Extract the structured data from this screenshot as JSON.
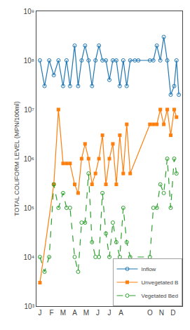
{
  "chart_data": {
    "type": "line",
    "ylabel": "TOTAL COLIFORM LEVEL (MPN/100ml)",
    "log": "y",
    "grid": false,
    "legend": "lower right",
    "xlim": [
      -0.3,
      12.3
    ],
    "xticks": [
      {
        "value": 0,
        "label": "J"
      },
      {
        "value": 1,
        "label": "F"
      },
      {
        "value": 2,
        "label": "M"
      },
      {
        "value": 3,
        "label": "A"
      },
      {
        "value": 4,
        "label": "M"
      },
      {
        "value": 5,
        "label": "J"
      },
      {
        "value": 6,
        "label": "J"
      },
      {
        "value": 7,
        "label": "A"
      },
      {
        "value": 9.5,
        "label": "O"
      },
      {
        "value": 10.5,
        "label": "N"
      },
      {
        "value": 11.5,
        "label": "D"
      }
    ],
    "ylim": [
      1000,
      1000000000
    ],
    "yticks": [
      {
        "value": 1000,
        "label": "10³"
      },
      {
        "value": 10000,
        "label": "10⁴"
      },
      {
        "value": 100000,
        "label": "10⁵"
      },
      {
        "value": 1000000,
        "label": "10⁶"
      },
      {
        "value": 10000000,
        "label": "10⁷"
      },
      {
        "value": 100000000,
        "label": "10⁸"
      },
      {
        "value": 1000000000,
        "label": "10⁹"
      }
    ],
    "series": [
      {
        "name": "Inflow",
        "marker": "circle-open",
        "line_style": "solid",
        "x": [
          0,
          0.4,
          0.8,
          1.2,
          1.6,
          2.0,
          2.3,
          2.6,
          3.0,
          3.3,
          3.6,
          3.9,
          4.2,
          4.5,
          4.8,
          5.1,
          5.4,
          5.7,
          6.0,
          6.3,
          6.6,
          6.9,
          7.2,
          7.5,
          7.8,
          8.2,
          8.5,
          9.5,
          9.8,
          10.1,
          10.4,
          10.7,
          11.0,
          11.3,
          11.6,
          11.8,
          12.0
        ],
        "values": [
          100000000.0,
          30000000.0,
          100000000.0,
          50000000.0,
          100000000.0,
          30000000.0,
          100000000.0,
          30000000.0,
          200000000.0,
          30000000.0,
          100000000.0,
          200000000.0,
          100000000.0,
          30000000.0,
          100000000.0,
          200000000.0,
          100000000.0,
          100000000.0,
          40000000.0,
          100000000.0,
          100000000.0,
          30000000.0,
          100000000.0,
          30000000.0,
          100000000.0,
          100000000.0,
          100000000.0,
          100000000.0,
          100000000.0,
          200000000.0,
          100000000.0,
          300000000.0,
          100000000.0,
          20000000.0,
          30000000.0,
          100000000.0,
          20000000.0
        ]
      },
      {
        "name": "Unvegetated B",
        "marker": "square",
        "line_style": "solid",
        "x": [
          0,
          1.2,
          1.6,
          2.0,
          2.3,
          2.6,
          3.0,
          3.3,
          3.6,
          3.9,
          4.2,
          4.5,
          4.8,
          5.1,
          5.4,
          5.7,
          6.0,
          6.3,
          6.6,
          6.9,
          7.2,
          7.5,
          7.8,
          9.5,
          9.8,
          10.1,
          10.4,
          10.7,
          11.0,
          11.3,
          11.6,
          11.8
        ],
        "values": [
          3000.0,
          300000.0,
          10000000.0,
          800000.0,
          800000.0,
          800000.0,
          300000.0,
          200000.0,
          1000000.0,
          2000000.0,
          1000000.0,
          300000.0,
          500000.0,
          1000000.0,
          3000000.0,
          300000.0,
          1000000.0,
          2000000.0,
          300000.0,
          3000000.0,
          500000.0,
          5000000.0,
          500000.0,
          5000000.0,
          5000000.0,
          5000000.0,
          10000000.0,
          5000000.0,
          10000000.0,
          3000000.0,
          10000000.0,
          7000000.0
        ]
      },
      {
        "name": "Vegetated Bed",
        "marker": "circle-open",
        "line_style": "dash",
        "x": [
          0,
          0.4,
          0.8,
          1.2,
          1.6,
          2.0,
          2.3,
          2.6,
          3.0,
          3.3,
          3.6,
          3.9,
          4.2,
          4.5,
          4.8,
          5.1,
          5.4,
          5.7,
          6.0,
          6.3,
          6.6,
          6.9,
          7.2,
          7.5,
          7.8,
          9.5,
          9.8,
          10.1,
          10.4,
          10.7,
          11.0,
          11.3,
          11.6,
          11.8
        ],
        "values": [
          10000.0,
          5000.0,
          10000.0,
          300000.0,
          100000.0,
          200000.0,
          100000.0,
          100000.0,
          10000.0,
          5000.0,
          50000.0,
          50000.0,
          500000.0,
          20000.0,
          10000.0,
          10000.0,
          200000.0,
          30000.0,
          10000.0,
          50000.0,
          20000.0,
          10000.0,
          100000.0,
          20000.0,
          10000.0,
          10000.0,
          100000.0,
          100000.0,
          300000.0,
          200000.0,
          1000000.0,
          100000.0,
          1000000.0,
          500000.0
        ]
      }
    ]
  }
}
